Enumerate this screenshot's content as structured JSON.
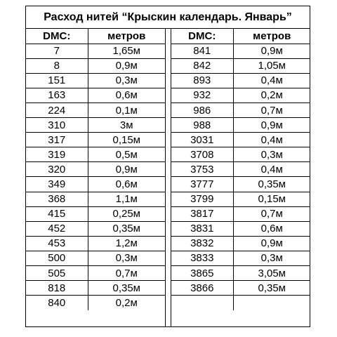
{
  "title": "Расход нитей “Крыскин календарь. Январь”",
  "left": {
    "header": {
      "dmc": "DMC:",
      "meters": "метров"
    },
    "rows": [
      {
        "dmc": "7",
        "meters": "1,65м"
      },
      {
        "dmc": "8",
        "meters": "0,9м"
      },
      {
        "dmc": "151",
        "meters": "0,3м"
      },
      {
        "dmc": "163",
        "meters": "0,6м"
      },
      {
        "dmc": "224",
        "meters": "0,1м"
      },
      {
        "dmc": "310",
        "meters": "3м"
      },
      {
        "dmc": "317",
        "meters": "0,15м"
      },
      {
        "dmc": "319",
        "meters": "0,5м"
      },
      {
        "dmc": "320",
        "meters": "0,9м"
      },
      {
        "dmc": "349",
        "meters": "0,6м"
      },
      {
        "dmc": "368",
        "meters": "1,1м"
      },
      {
        "dmc": "415",
        "meters": "0,25м"
      },
      {
        "dmc": "452",
        "meters": "0,35м"
      },
      {
        "dmc": "453",
        "meters": "1,2м"
      },
      {
        "dmc": "500",
        "meters": "0,3м"
      },
      {
        "dmc": "505",
        "meters": "0,7м"
      },
      {
        "dmc": "818",
        "meters": "0,35м"
      },
      {
        "dmc": "840",
        "meters": "0,2м"
      }
    ]
  },
  "right": {
    "header": {
      "dmc": "DMC:",
      "meters": "метров"
    },
    "rows": [
      {
        "dmc": "841",
        "meters": "0,9м"
      },
      {
        "dmc": "842",
        "meters": "1,05м"
      },
      {
        "dmc": "893",
        "meters": "0,4м"
      },
      {
        "dmc": "932",
        "meters": "0,2м"
      },
      {
        "dmc": "986",
        "meters": "0,7м"
      },
      {
        "dmc": "988",
        "meters": "0,9м"
      },
      {
        "dmc": "3031",
        "meters": "0,4м"
      },
      {
        "dmc": "3708",
        "meters": "0,3м"
      },
      {
        "dmc": "3753",
        "meters": "0,4м"
      },
      {
        "dmc": "3777",
        "meters": "0,35м"
      },
      {
        "dmc": "3799",
        "meters": "0,15м"
      },
      {
        "dmc": "3817",
        "meters": "0,7м"
      },
      {
        "dmc": "3831",
        "meters": "0,6м"
      },
      {
        "dmc": "3832",
        "meters": "0,9м"
      },
      {
        "dmc": "3833",
        "meters": "0,3м"
      },
      {
        "dmc": "3865",
        "meters": "3,05м"
      },
      {
        "dmc": "3866",
        "meters": "0,35м"
      },
      {
        "dmc": "",
        "meters": ""
      }
    ]
  }
}
